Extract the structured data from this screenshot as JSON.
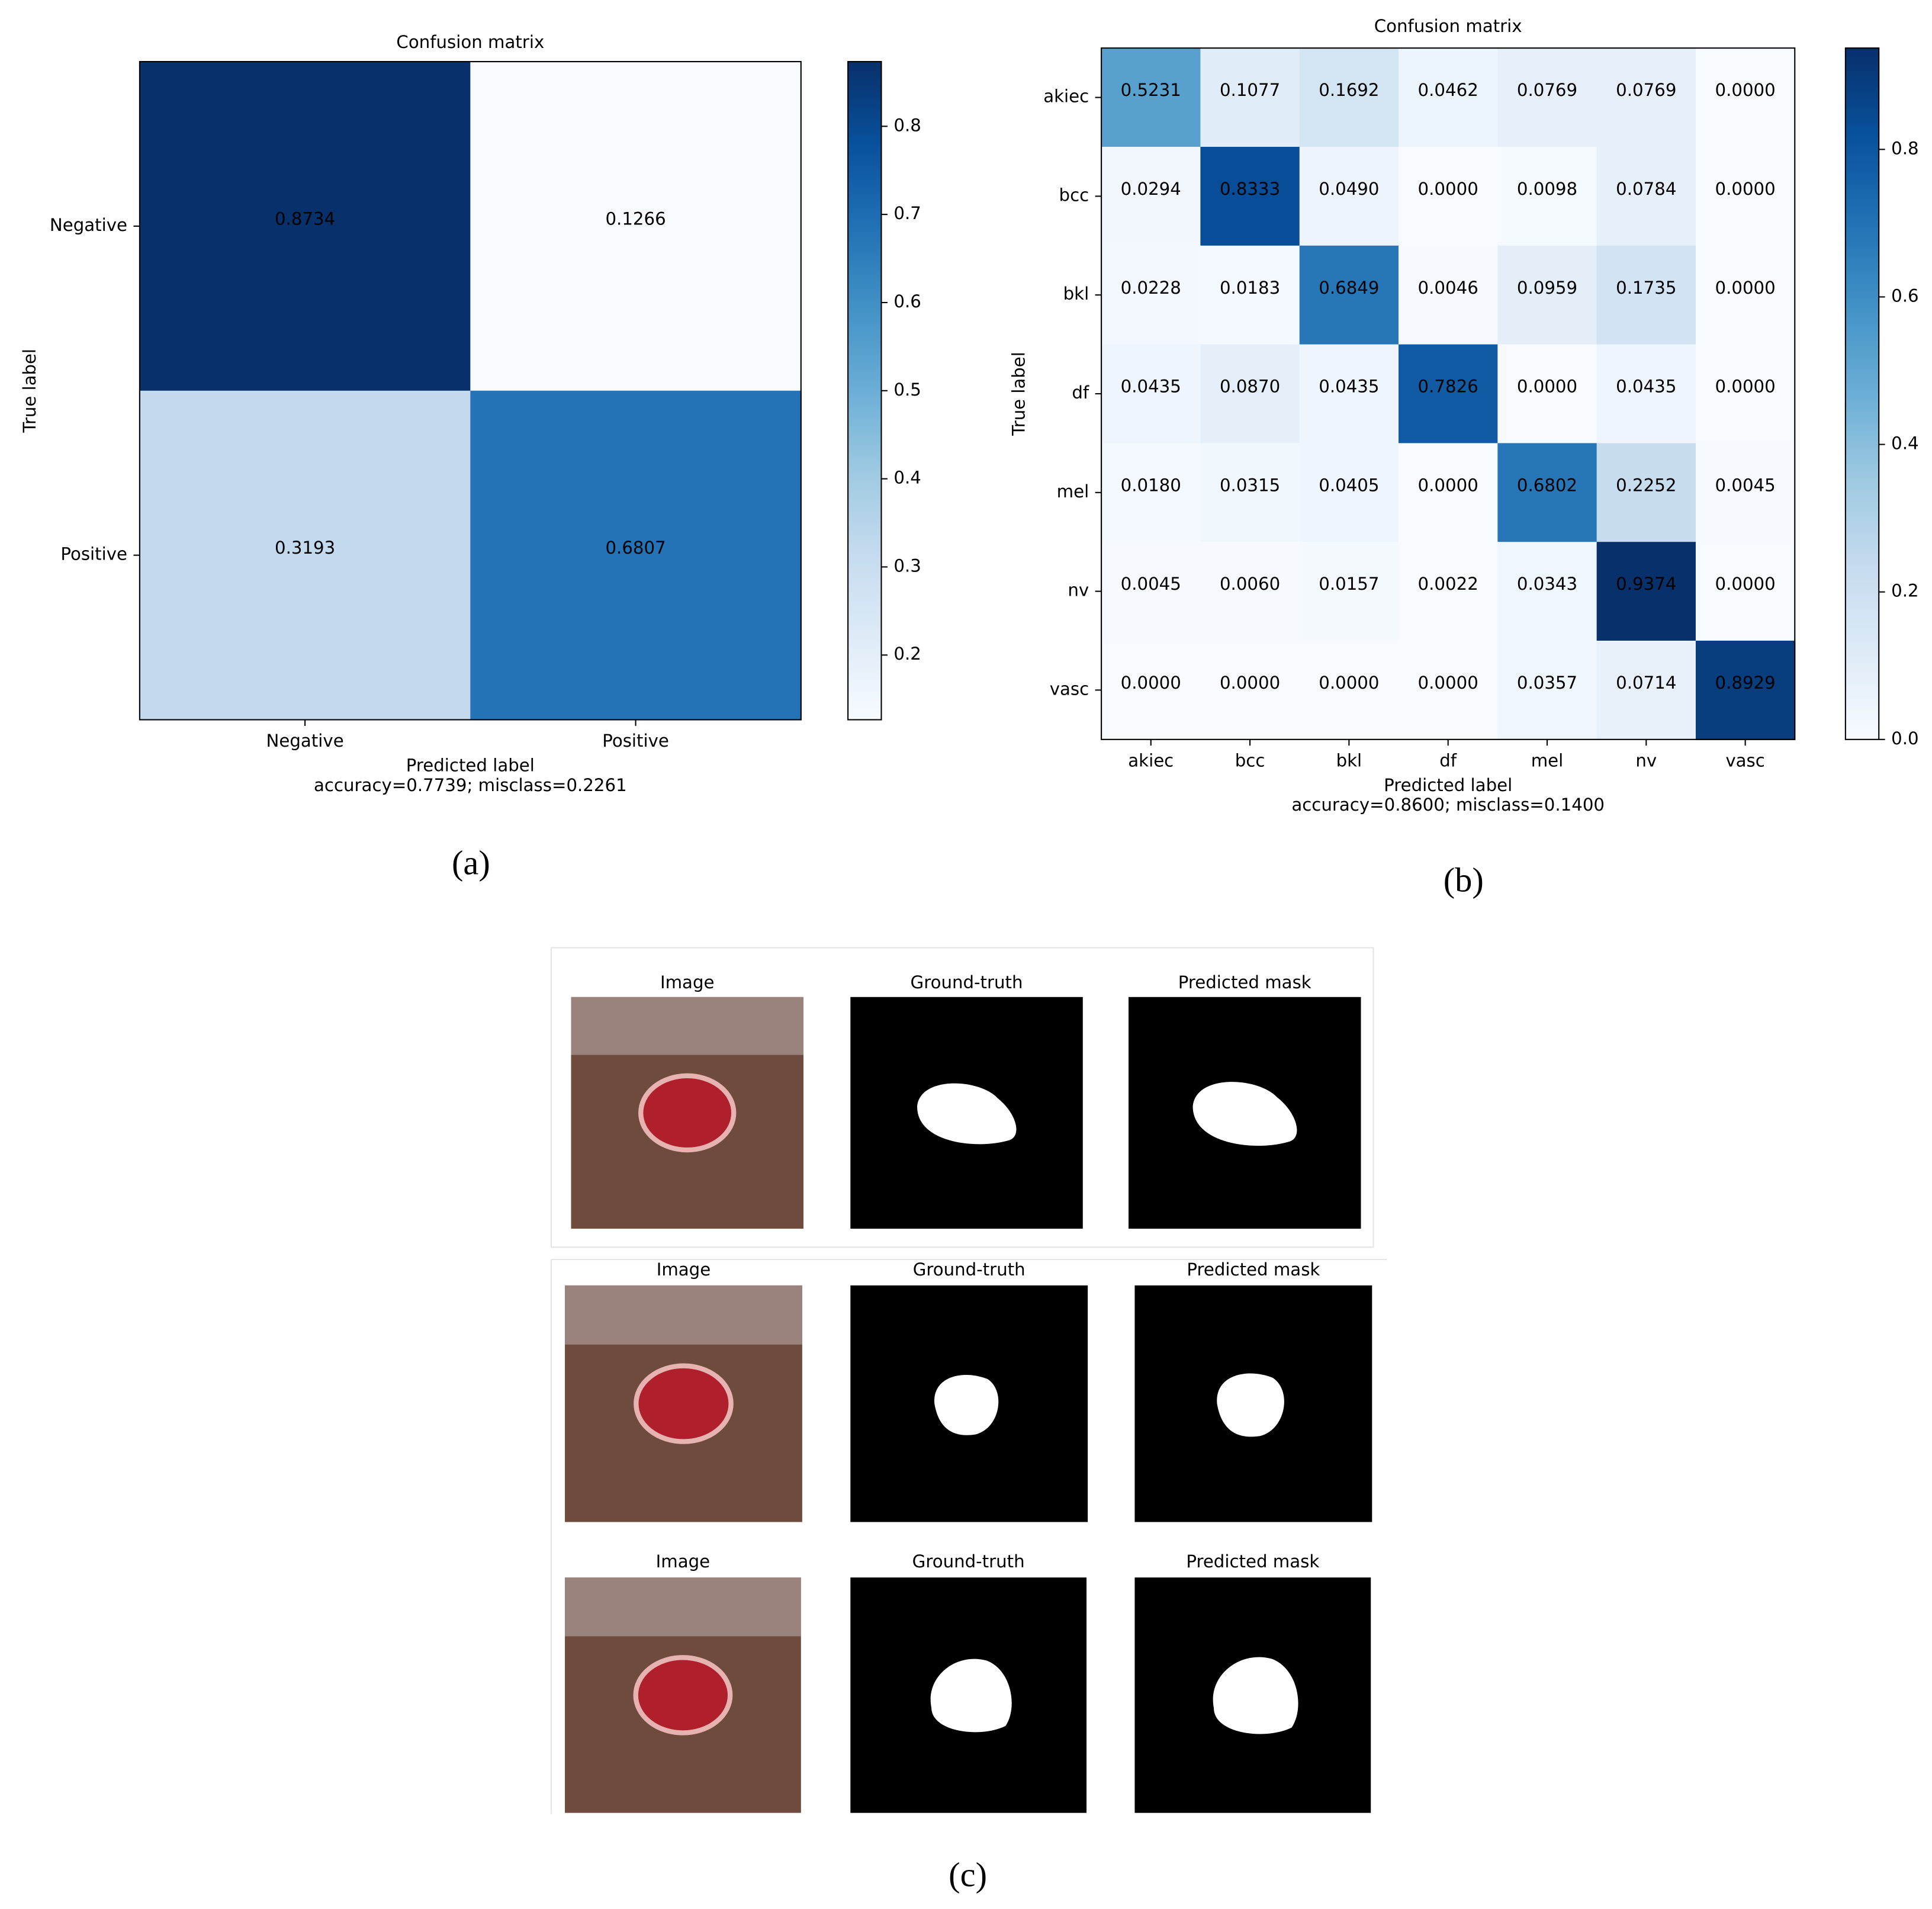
{
  "chart_data": [
    {
      "type": "heatmap",
      "title": "Confusion matrix",
      "x_label": "Predicted label",
      "subtitle": "accuracy=0.7739; misclass=0.2261",
      "y_label": "True label",
      "x_categories": [
        "Negative",
        "Positive"
      ],
      "y_categories": [
        "Negative",
        "Positive"
      ],
      "values": [
        [
          0.8734,
          0.1266
        ],
        [
          0.3193,
          0.6807
        ]
      ],
      "value_labels": [
        [
          "0.8734",
          "0.1266"
        ],
        [
          "0.3193",
          "0.6807"
        ]
      ],
      "clim": [
        0.1266,
        0.8734
      ],
      "colorbar_ticks": [
        0.2,
        0.3,
        0.4,
        0.5,
        0.6,
        0.7,
        0.8
      ],
      "colormap": [
        "#f7fbff",
        "#deebf7",
        "#c6dbef",
        "#9ecae1",
        "#6baed6",
        "#4292c6",
        "#2171b5",
        "#08519c",
        "#08306b"
      ],
      "panel_label": "(a)"
    },
    {
      "type": "heatmap",
      "title": "Confusion matrix",
      "x_label": "Predicted label",
      "subtitle": "accuracy=0.8600; misclass=0.1400",
      "y_label": "True label",
      "x_categories": [
        "akiec",
        "bcc",
        "bkl",
        "df",
        "mel",
        "nv",
        "vasc"
      ],
      "y_categories": [
        "akiec",
        "bcc",
        "bkl",
        "df",
        "mel",
        "nv",
        "vasc"
      ],
      "values": [
        [
          0.5231,
          0.1077,
          0.1692,
          0.0462,
          0.0769,
          0.0769,
          0
        ],
        [
          0.0294,
          0.8333,
          0.049,
          0,
          0.0098,
          0.0784,
          0
        ],
        [
          0.0228,
          0.0183,
          0.6849,
          0.0046,
          0.0959,
          0.1735,
          0
        ],
        [
          0.0435,
          0.087,
          0.0435,
          0.7826,
          0,
          0.0435,
          0
        ],
        [
          0.018,
          0.0315,
          0.0405,
          0,
          0.6802,
          0.2252,
          0.0045
        ],
        [
          0.0045,
          0.006,
          0.0157,
          0.0022,
          0.0343,
          0.9374,
          0
        ],
        [
          0,
          0,
          0,
          0,
          0.0357,
          0.0714,
          0.8929
        ]
      ],
      "value_labels": [
        [
          "0.5231",
          "0.1077",
          "0.1692",
          "0.0462",
          "0.0769",
          "0.0769",
          "0.0000"
        ],
        [
          "0.0294",
          "0.8333",
          "0.0490",
          "0.0000",
          "0.0098",
          "0.0784",
          "0.0000"
        ],
        [
          "0.0228",
          "0.0183",
          "0.6849",
          "0.0046",
          "0.0959",
          "0.1735",
          "0.0000"
        ],
        [
          "0.0435",
          "0.0870",
          "0.0435",
          "0.7826",
          "0.0000",
          "0.0435",
          "0.0000"
        ],
        [
          "0.0180",
          "0.0315",
          "0.0405",
          "0.0000",
          "0.6802",
          "0.2252",
          "0.0045"
        ],
        [
          "0.0045",
          "0.0060",
          "0.0157",
          "0.0022",
          "0.0343",
          "0.9374",
          "0.0000"
        ],
        [
          "0.0000",
          "0.0000",
          "0.0000",
          "0.0000",
          "0.0357",
          "0.0714",
          "0.8929"
        ]
      ],
      "clim": [
        0,
        0.9374
      ],
      "colorbar_ticks": [
        {
          "value": 0,
          "label": "0.0"
        },
        0.2,
        0.4,
        0.6,
        0.8
      ],
      "colormap": [
        "#f7fbff",
        "#deebf7",
        "#c6dbef",
        "#9ecae1",
        "#6baed6",
        "#4292c6",
        "#2171b5",
        "#08519c",
        "#08306b"
      ],
      "panel_label": "(b)"
    }
  ],
  "segmentation": {
    "rows": [
      {
        "titles": [
          "Image",
          "Ground-truth",
          "Predicted mask"
        ]
      },
      {
        "titles": [
          "Image",
          "Ground-truth",
          "Predicted mask"
        ]
      },
      {
        "titles": [
          "Image",
          "Ground-truth",
          "Predicted mask"
        ]
      }
    ],
    "panel_label": "(c)"
  }
}
